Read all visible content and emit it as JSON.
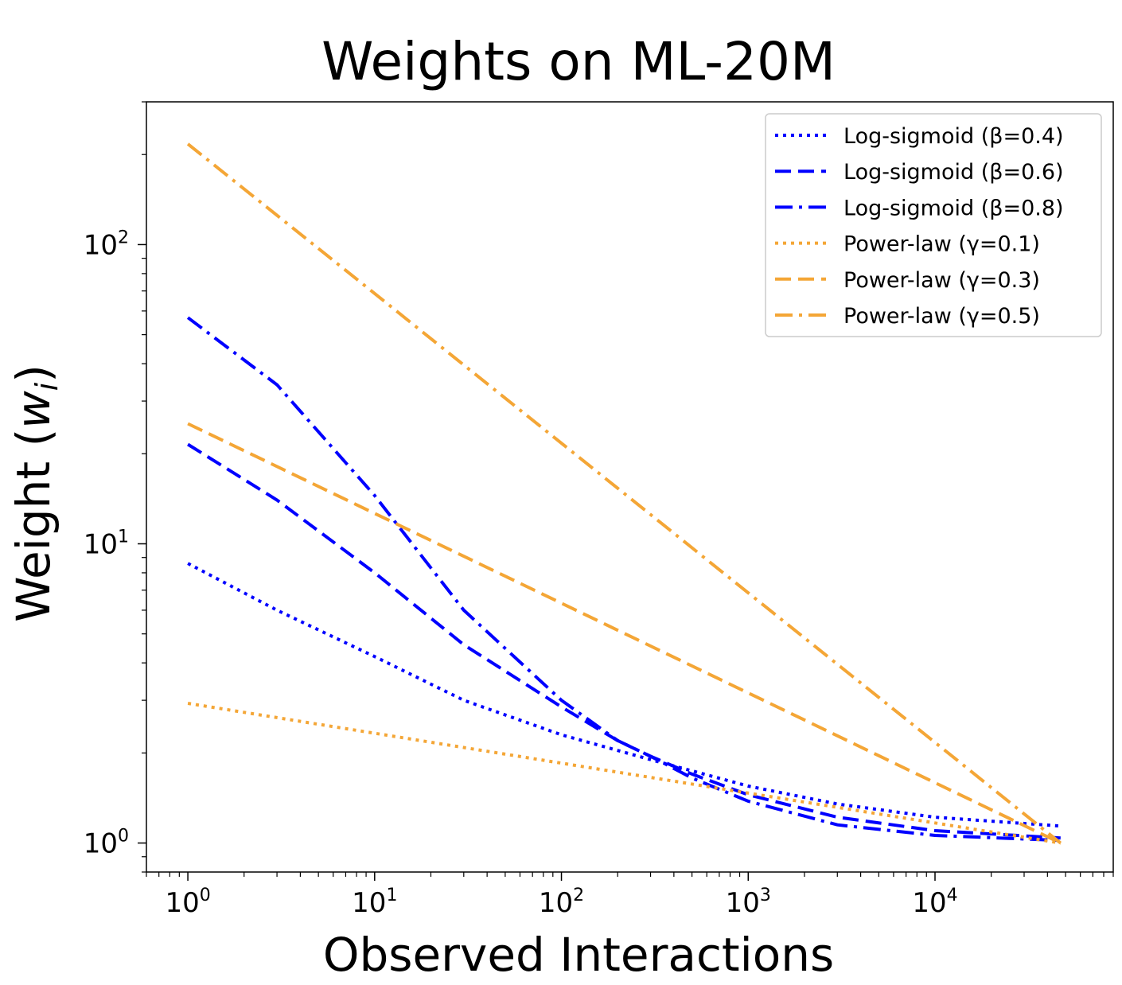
{
  "chart_data": {
    "type": "line",
    "title": "Weights on ML-20M",
    "xlabel": "Observed Interactions",
    "ylabel": "Weight (",
    "ylabel_symbol": "w",
    "ylabel_subscript": "i",
    "ylabel_close": ")",
    "xscale": "log",
    "yscale": "log",
    "xlim": [
      0.6,
      90000
    ],
    "ylim": [
      0.8,
      300
    ],
    "x_ticks": [
      {
        "base": "10",
        "exp": "0",
        "value": 1
      },
      {
        "base": "10",
        "exp": "1",
        "value": 10
      },
      {
        "base": "10",
        "exp": "2",
        "value": 100
      },
      {
        "base": "10",
        "exp": "3",
        "value": 1000
      },
      {
        "base": "10",
        "exp": "4",
        "value": 10000
      }
    ],
    "y_ticks": [
      {
        "base": "10",
        "exp": "0",
        "value": 1
      },
      {
        "base": "10",
        "exp": "1",
        "value": 10
      },
      {
        "base": "10",
        "exp": "2",
        "value": 100
      }
    ],
    "grid": false,
    "legend_position": "top-right",
    "series": [
      {
        "name": "Log-sigmoid (β=0.4)",
        "color": "#0000ff",
        "dash": "dotted",
        "x": [
          1,
          3,
          10,
          30,
          100,
          300,
          1000,
          3000,
          10000,
          47000
        ],
        "y": [
          8.6,
          6.0,
          4.2,
          3.0,
          2.3,
          1.9,
          1.55,
          1.35,
          1.22,
          1.14
        ]
      },
      {
        "name": "Log-sigmoid (β=0.6)",
        "color": "#0000ff",
        "dash": "dashed",
        "x": [
          1,
          3,
          10,
          30,
          100,
          200,
          300,
          500,
          1000,
          3000,
          10000,
          47000
        ],
        "y": [
          21.5,
          14.0,
          8.0,
          4.6,
          2.85,
          2.2,
          1.95,
          1.7,
          1.45,
          1.22,
          1.1,
          1.04
        ]
      },
      {
        "name": "Log-sigmoid (β=0.8)",
        "color": "#0000ff",
        "dash": "dashdot",
        "x": [
          1,
          3,
          10,
          30,
          100,
          200,
          300,
          500,
          1000,
          3000,
          10000,
          47000
        ],
        "y": [
          57,
          34,
          14.5,
          6.0,
          3.0,
          2.2,
          1.95,
          1.65,
          1.38,
          1.15,
          1.06,
          1.02
        ]
      },
      {
        "name": "Power-law (γ=0.1)",
        "color": "#f4a636",
        "dash": "dotted",
        "x": [
          1,
          47000
        ],
        "y": [
          2.93,
          1.0
        ]
      },
      {
        "name": "Power-law (γ=0.3)",
        "color": "#f4a636",
        "dash": "dashed",
        "x": [
          1,
          47000
        ],
        "y": [
          25.2,
          1.0
        ]
      },
      {
        "name": "Power-law (γ=0.5)",
        "color": "#f4a636",
        "dash": "dashdot",
        "x": [
          1,
          47000
        ],
        "y": [
          217,
          1.0
        ]
      }
    ]
  }
}
